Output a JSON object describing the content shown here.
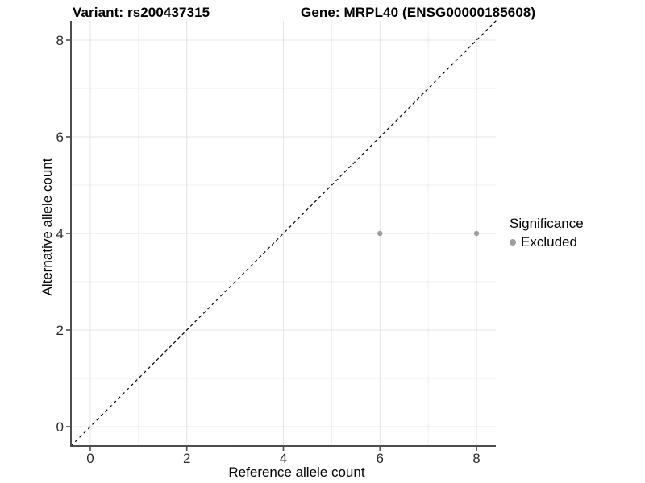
{
  "titles": {
    "variant": "Variant: rs200437315",
    "gene": "Gene: MRPL40 (ENSG00000185608)"
  },
  "axes": {
    "x": {
      "label": "Reference allele count",
      "ticks": [
        0,
        2,
        4,
        6,
        8
      ],
      "minor_ticks": [
        1,
        3,
        5,
        7
      ],
      "range": [
        -0.4,
        8.4
      ]
    },
    "y": {
      "label": "Alternative allele count",
      "ticks": [
        0,
        2,
        4,
        6,
        8
      ],
      "minor_ticks": [
        1,
        3,
        5,
        7
      ],
      "range": [
        -0.4,
        8.4
      ]
    }
  },
  "legend": {
    "title": "Significance",
    "items": [
      {
        "label": "Excluded",
        "color": "#9e9e9e"
      }
    ]
  },
  "chart_data": {
    "type": "scatter",
    "title": "Variant: rs200437315 | Gene: MRPL40 (ENSG00000185608)",
    "xlabel": "Reference allele count",
    "ylabel": "Alternative allele count",
    "xlim": [
      -0.4,
      8.4
    ],
    "ylim": [
      -0.4,
      8.4
    ],
    "grid": true,
    "legend_position": "right",
    "series": [
      {
        "name": "Excluded",
        "color": "#9e9e9e",
        "point_radius": 3.2,
        "points": [
          [
            6,
            4
          ],
          [
            8,
            4
          ]
        ]
      }
    ],
    "identity_line": {
      "style": "dashed",
      "color": "#000000",
      "from": [
        -0.4,
        -0.4
      ],
      "to": [
        8.45,
        8.45
      ]
    }
  },
  "colors": {
    "grid_major": "#e4e4e4",
    "grid_minor": "#efefef",
    "axis_line": "#4d4d4d",
    "tick_text": "#2b2b2b",
    "point": "#9e9e9e"
  }
}
